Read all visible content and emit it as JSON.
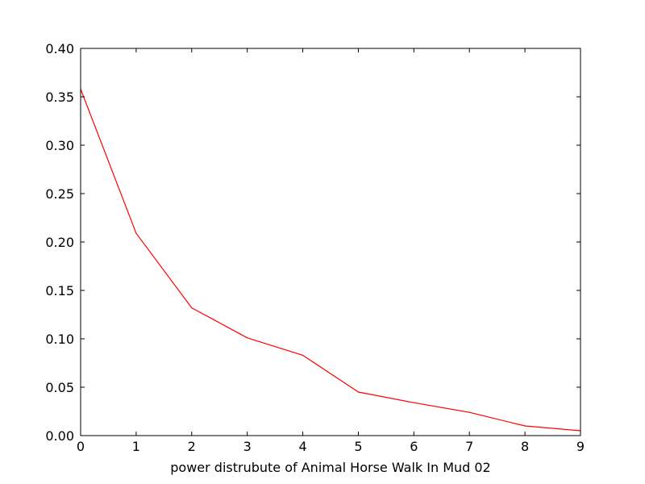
{
  "chart_data": {
    "type": "line",
    "title": "",
    "xlabel": "power distrubute of Animal Horse Walk In Mud 02",
    "ylabel": "",
    "xlim": [
      0,
      9
    ],
    "ylim": [
      0.0,
      0.4
    ],
    "x_ticks": [
      0,
      1,
      2,
      3,
      4,
      5,
      6,
      7,
      8,
      9
    ],
    "x_tick_labels": [
      "0",
      "1",
      "2",
      "3",
      "4",
      "5",
      "6",
      "7",
      "8",
      "9"
    ],
    "y_ticks": [
      0.0,
      0.05,
      0.1,
      0.15,
      0.2,
      0.25,
      0.3,
      0.35,
      0.4
    ],
    "y_tick_labels": [
      "0.00",
      "0.05",
      "0.10",
      "0.15",
      "0.20",
      "0.25",
      "0.30",
      "0.35",
      "0.40"
    ],
    "grid": false,
    "legend": "none",
    "series": [
      {
        "color": "#ff0000",
        "x": [
          0,
          1,
          2,
          3,
          4,
          5,
          6,
          7,
          8,
          9
        ],
        "values": [
          0.358,
          0.209,
          0.132,
          0.101,
          0.083,
          0.045,
          0.034,
          0.024,
          0.01,
          0.005
        ]
      }
    ]
  }
}
